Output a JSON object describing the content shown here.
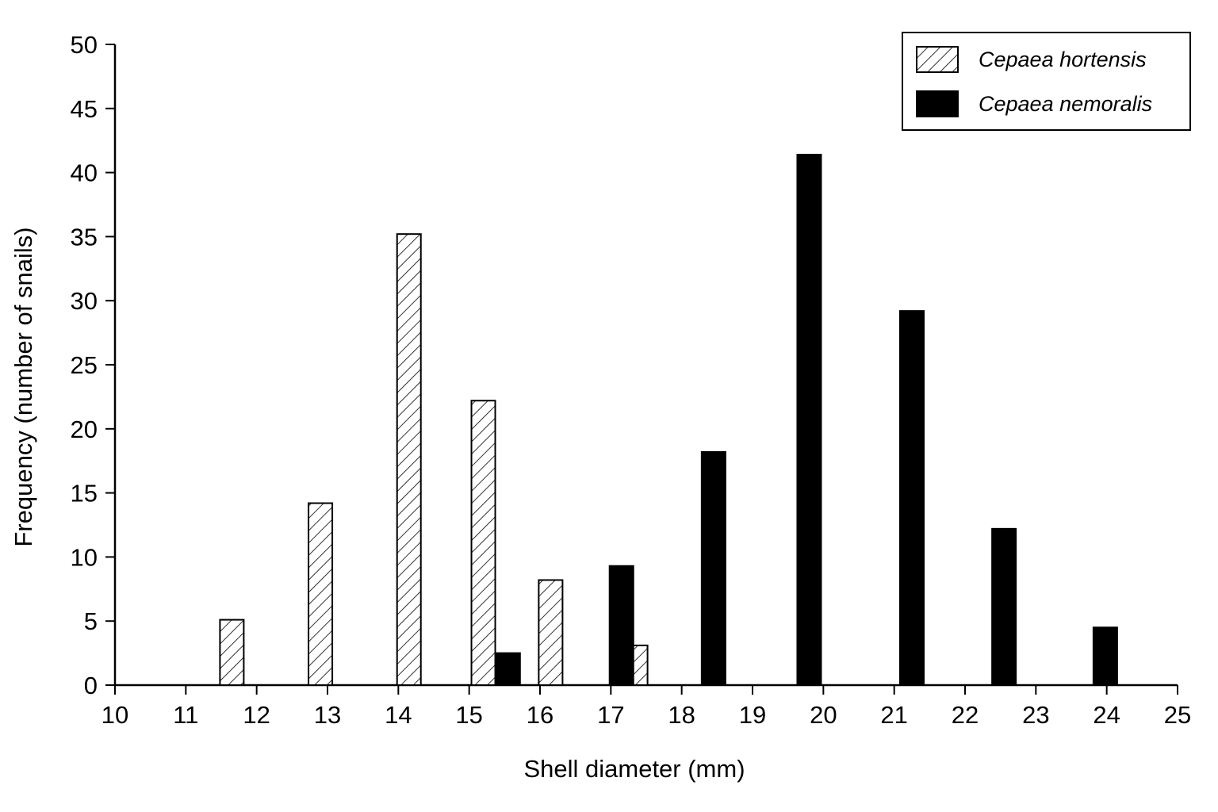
{
  "chart_data": {
    "type": "bar",
    "title": "",
    "xlabel": "Shell diameter (mm)",
    "ylabel": "Frequency (number of snails)",
    "xlim": [
      10,
      25
    ],
    "ylim": [
      0,
      50
    ],
    "x_ticks": [
      "10",
      "11",
      "12",
      "13",
      "14",
      "15",
      "16",
      "17",
      "18",
      "19",
      "20",
      "21",
      "22",
      "23",
      "24",
      "25"
    ],
    "y_ticks": [
      "0",
      "5",
      "10",
      "15",
      "20",
      "25",
      "30",
      "35",
      "40",
      "45",
      "50"
    ],
    "grid": false,
    "legend_position": "top-right",
    "series": [
      {
        "name": "Cepaea hortensis",
        "fill": "hatched",
        "color": "#000000",
        "x": [
          11.65,
          12.9,
          14.15,
          15.2,
          16.15,
          17.35
        ],
        "values": [
          5.1,
          14.2,
          35.2,
          22.2,
          8.2,
          3.1
        ]
      },
      {
        "name": "Cepaea nemoralis",
        "fill": "solid",
        "color": "#000000",
        "x": [
          15.55,
          17.15,
          18.45,
          19.8,
          21.25,
          22.55,
          23.98
        ],
        "values": [
          2.5,
          9.3,
          18.2,
          41.4,
          29.2,
          12.2,
          4.5
        ]
      }
    ]
  }
}
